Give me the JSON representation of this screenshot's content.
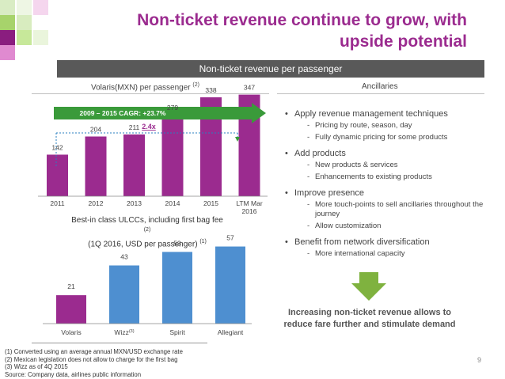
{
  "header": {
    "title_line1": "Non-ticket revenue continue to grow, with",
    "title_line2": "upside potential"
  },
  "section_bar": "Non-ticket revenue per passenger",
  "left_heading": {
    "text": "Volaris(MXN) per passenger",
    "sup": "(2)"
  },
  "right_heading": "Ancillaries",
  "chart_data": [
    {
      "type": "bar",
      "title": "Volaris(MXN) per passenger (2)",
      "categories": [
        "2011",
        "2012",
        "2013",
        "2014",
        "2015",
        "LTM Mar 2016"
      ],
      "values": [
        142,
        204,
        211,
        279,
        338,
        347
      ],
      "ylim": [
        0,
        400
      ],
      "color": "#9b2b8f",
      "annotations": {
        "cagr": "2009 – 2015 CAGR: +23.7%",
        "multiple": "2.4x"
      }
    },
    {
      "type": "bar",
      "title": "Best-in class ULCCs, including first bag fee (2) (1Q 2016, USD per passenger) (1)",
      "categories": [
        "Volaris",
        "Wizz",
        "Spirit",
        "Allegiant"
      ],
      "category_sups": [
        "",
        "(3)",
        "",
        ""
      ],
      "values": [
        21,
        43,
        53,
        57
      ],
      "ylim": [
        0,
        62
      ],
      "colors": [
        "#9b2b8f",
        "#4e8fd0",
        "#4e8fd0",
        "#4e8fd0"
      ]
    }
  ],
  "chart2_title": {
    "line1": "Best-in class ULCCs, including first bag fee",
    "sup1": "(2)",
    "line2": "(1Q 2016, USD per passenger)",
    "sup2": "(1)"
  },
  "ancillaries": [
    {
      "text": "Apply revenue management techniques",
      "subs": [
        "Pricing by route, season, day",
        "Fully dynamic pricing for some products"
      ]
    },
    {
      "text": "Add products",
      "subs": [
        "New products & services",
        "Enhancements to existing products"
      ]
    },
    {
      "text": "Improve presence",
      "subs": [
        "More touch-points to sell ancillaries throughout the journey",
        "Allow customization"
      ]
    },
    {
      "text": "Benefit from network diversification",
      "subs": [
        "More international capacity"
      ]
    }
  ],
  "conclusion": "Increasing non-ticket revenue allows to reduce fare further and stimulate demand",
  "footnotes": [
    "(1) Converted using an average annual MXN/USD exchange rate",
    "(2) Mexican legislation does not allow to charge for the first bag",
    "(3) Wizz as of 4Q 2015",
    "Source: Company data, airlines public information"
  ],
  "page_number": "9",
  "colors": {
    "brand_purple": "#9b2b8f",
    "brand_green": "#3a9a3a",
    "bar_blue": "#4e8fd0",
    "arrow_green": "#7fb23f"
  }
}
